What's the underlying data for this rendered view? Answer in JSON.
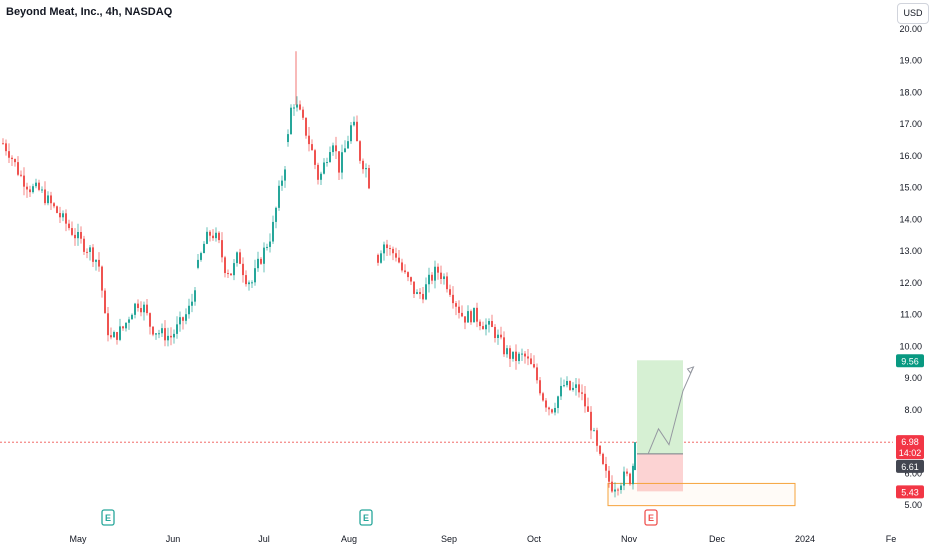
{
  "header": {
    "title": "Beyond Meat, Inc., 4h, NASDAQ",
    "currency_button": "USD"
  },
  "colors": {
    "up": "#26a69a",
    "down": "#ef5350",
    "grid_text": "#131722",
    "current_price_line": "#ef5350",
    "target_zone": "#d6f0d3",
    "stop_zone": "#fcd3d3",
    "demand_box_border": "#f6a33b",
    "earnings_green": "#26a69a",
    "earnings_red": "#ef5350",
    "label_green": "#089981",
    "label_red": "#f23645",
    "label_dark": "#434651"
  },
  "chart_data": {
    "type": "candlestick",
    "title": "Beyond Meat, Inc., 4h, NASDAQ",
    "currency": "USD",
    "y_axis": {
      "ticks": [
        "20.00",
        "19.00",
        "18.00",
        "17.00",
        "16.00",
        "15.00",
        "14.00",
        "13.00",
        "12.00",
        "11.00",
        "10.00",
        "9.00",
        "8.00",
        "6.00",
        "5.00"
      ],
      "tick_values": [
        20,
        19,
        18,
        17,
        16,
        15,
        14,
        13,
        12,
        11,
        10,
        9,
        8,
        6,
        5
      ],
      "range": [
        4.6,
        20.7
      ]
    },
    "x_axis": {
      "tick_labels": [
        "May",
        "Jun",
        "Jul",
        "Aug",
        "Sep",
        "Oct",
        "Nov",
        "Dec",
        "2024",
        "Fe"
      ],
      "range_days": [
        0,
        300
      ]
    },
    "price_path": [
      [
        0,
        16.4
      ],
      [
        2,
        16.1
      ],
      [
        5,
        15.4
      ],
      [
        8,
        15.0
      ],
      [
        11,
        14.9
      ],
      [
        14,
        14.5
      ],
      [
        17,
        14.1
      ],
      [
        20,
        13.7
      ],
      [
        23,
        13.3
      ],
      [
        26,
        13.0
      ],
      [
        28,
        12.7
      ],
      [
        29,
        12.4
      ],
      [
        30,
        11.0
      ],
      [
        32,
        10.2
      ],
      [
        34,
        10.4
      ],
      [
        36,
        10.6
      ],
      [
        38,
        11.1
      ],
      [
        40,
        11.4
      ],
      [
        42,
        11.2
      ],
      [
        44,
        10.6
      ],
      [
        47,
        10.4
      ],
      [
        50,
        10.3
      ],
      [
        52,
        10.6
      ],
      [
        54,
        10.9
      ],
      [
        56,
        11.3
      ],
      [
        58,
        12.5
      ],
      [
        60,
        13.3
      ],
      [
        62,
        13.6
      ],
      [
        64,
        13.3
      ],
      [
        66,
        12.5
      ],
      [
        68,
        12.3
      ],
      [
        70,
        12.9
      ],
      [
        72,
        12.2
      ],
      [
        74,
        12.0
      ],
      [
        76,
        12.6
      ],
      [
        78,
        13.1
      ],
      [
        80,
        13.6
      ],
      [
        82,
        14.8
      ],
      [
        84,
        15.8
      ],
      [
        86,
        17.8
      ],
      [
        88,
        17.4
      ],
      [
        90,
        16.8
      ],
      [
        92,
        16.1
      ],
      [
        94,
        15.2
      ],
      [
        96,
        15.9
      ],
      [
        98,
        16.6
      ],
      [
        100,
        15.6
      ],
      [
        102,
        16.3
      ],
      [
        104,
        17.1
      ],
      [
        106,
        16.0
      ],
      [
        108,
        15.6
      ],
      [
        109,
        15.1
      ],
      [
        111,
        12.6
      ],
      [
        113,
        13.3
      ],
      [
        115,
        13.0
      ],
      [
        117,
        12.9
      ],
      [
        119,
        12.3
      ],
      [
        121,
        12.0
      ],
      [
        123,
        11.6
      ],
      [
        125,
        11.7
      ],
      [
        127,
        12.1
      ],
      [
        129,
        12.4
      ],
      [
        131,
        12.2
      ],
      [
        133,
        11.8
      ],
      [
        135,
        11.3
      ],
      [
        137,
        10.9
      ],
      [
        140,
        11.0
      ],
      [
        143,
        10.7
      ],
      [
        146,
        10.5
      ],
      [
        149,
        9.9
      ],
      [
        152,
        9.6
      ],
      [
        155,
        9.7
      ],
      [
        158,
        9.2
      ],
      [
        161,
        8.3
      ],
      [
        163,
        8.0
      ],
      [
        165,
        8.4
      ],
      [
        167,
        8.8
      ],
      [
        169,
        8.6
      ],
      [
        171,
        8.7
      ],
      [
        173,
        8.2
      ],
      [
        175,
        7.5
      ],
      [
        177,
        6.6
      ],
      [
        179,
        6.0
      ],
      [
        181,
        5.6
      ],
      [
        183,
        5.7
      ],
      [
        185,
        5.9
      ],
      [
        187,
        5.8
      ],
      [
        188,
        6.98
      ]
    ],
    "earnings_markers": [
      {
        "label": "E",
        "day": 31,
        "color": "green"
      },
      {
        "label": "E",
        "day": 108,
        "color": "green"
      },
      {
        "label": "E",
        "day": 192,
        "color": "red"
      }
    ],
    "current_price": 6.98,
    "current_price_label": "6.98",
    "countdown_label": "14:02",
    "long_position": {
      "entry": 6.61,
      "target": 9.56,
      "stop": 5.43,
      "entry_label": "6.61",
      "target_label": "9.56",
      "stop_label": "5.43",
      "start_day": 189,
      "end_day": 202
    },
    "demand_zone": {
      "top": 5.68,
      "bottom": 4.98,
      "start_day": 181,
      "end_day": 234
    },
    "projection_path": [
      [
        191,
        6.6
      ],
      [
        194,
        7.4
      ],
      [
        197,
        6.9
      ],
      [
        201,
        8.6
      ],
      [
        204,
        9.35
      ]
    ]
  }
}
